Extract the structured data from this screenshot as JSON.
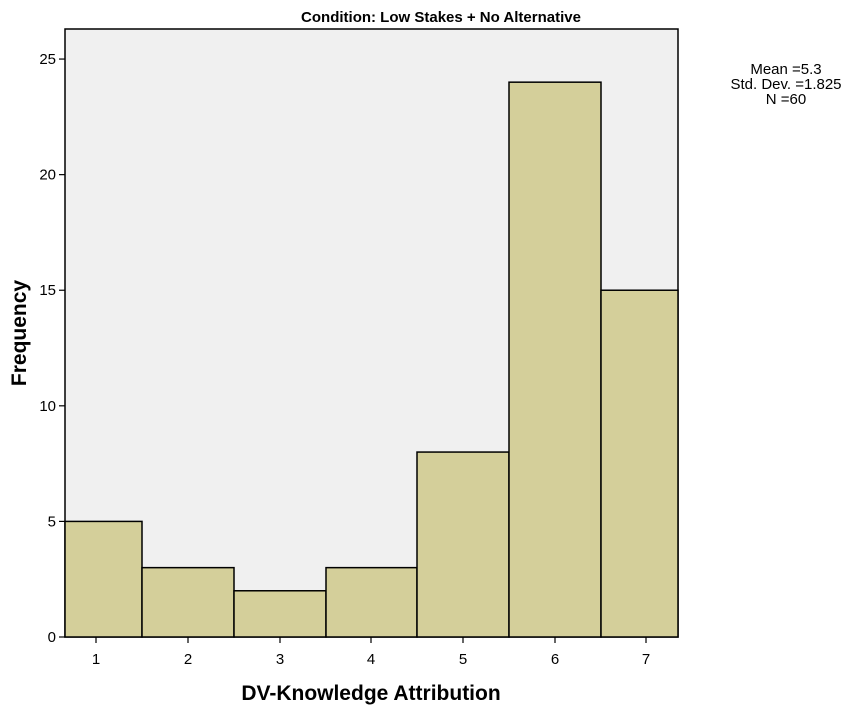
{
  "chart_data": {
    "type": "bar",
    "title": "Condition: Low Stakes + No Alternative",
    "xlabel": "DV-Knowledge Attribution",
    "ylabel": "Frequency",
    "categories": [
      "1",
      "2",
      "3",
      "4",
      "5",
      "6",
      "7"
    ],
    "values": [
      5,
      3,
      2,
      3,
      8,
      24,
      15
    ],
    "ylim": [
      0,
      26.3
    ],
    "yticks": [
      "0",
      "5",
      "10",
      "15",
      "20",
      "25"
    ],
    "grid": false,
    "stats": {
      "mean": "Mean =5.3",
      "std_dev": "Std. Dev. =1.825",
      "n": "N =60"
    },
    "colors": {
      "bar_fill": "#d4cf9a",
      "bar_stroke": "#000000",
      "plot_background": "#f0f0f0"
    }
  }
}
